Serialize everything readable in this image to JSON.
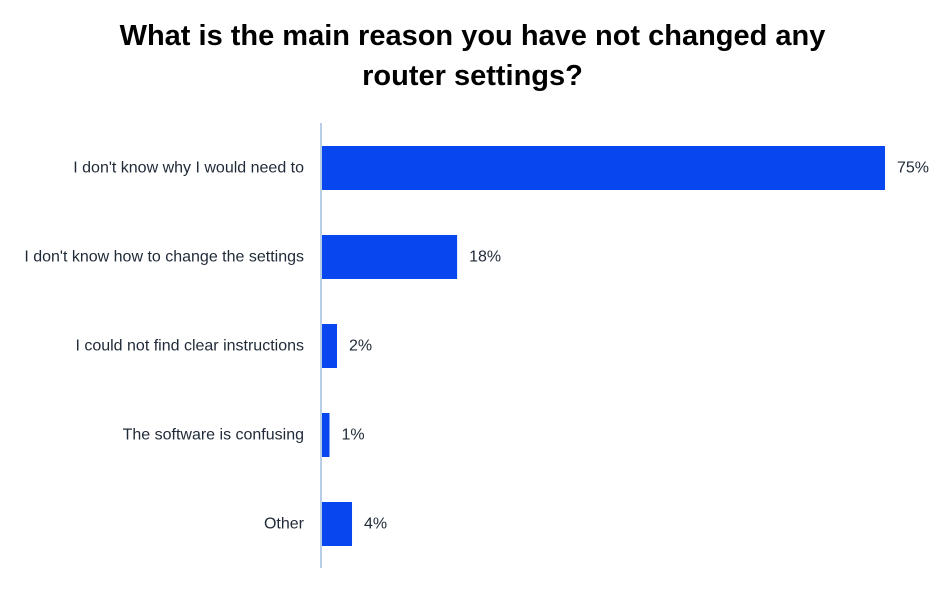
{
  "chart_data": {
    "type": "bar",
    "orientation": "horizontal",
    "title_lines": [
      "What is the main reason you have not changed any",
      "router settings?"
    ],
    "categories": [
      "I don't know why I would need to",
      "I don't know how to change the settings",
      "I could not find clear instructions",
      "The software is confusing",
      "Other"
    ],
    "values": [
      75,
      18,
      2,
      1,
      4
    ],
    "value_labels": [
      "75%",
      "18%",
      "2%",
      "1%",
      "4%"
    ],
    "unit": "%",
    "xlim": [
      0,
      75
    ],
    "grid": false,
    "legend": "none",
    "bar_color": "#0847f0",
    "axis_color": "#b8cde6"
  }
}
